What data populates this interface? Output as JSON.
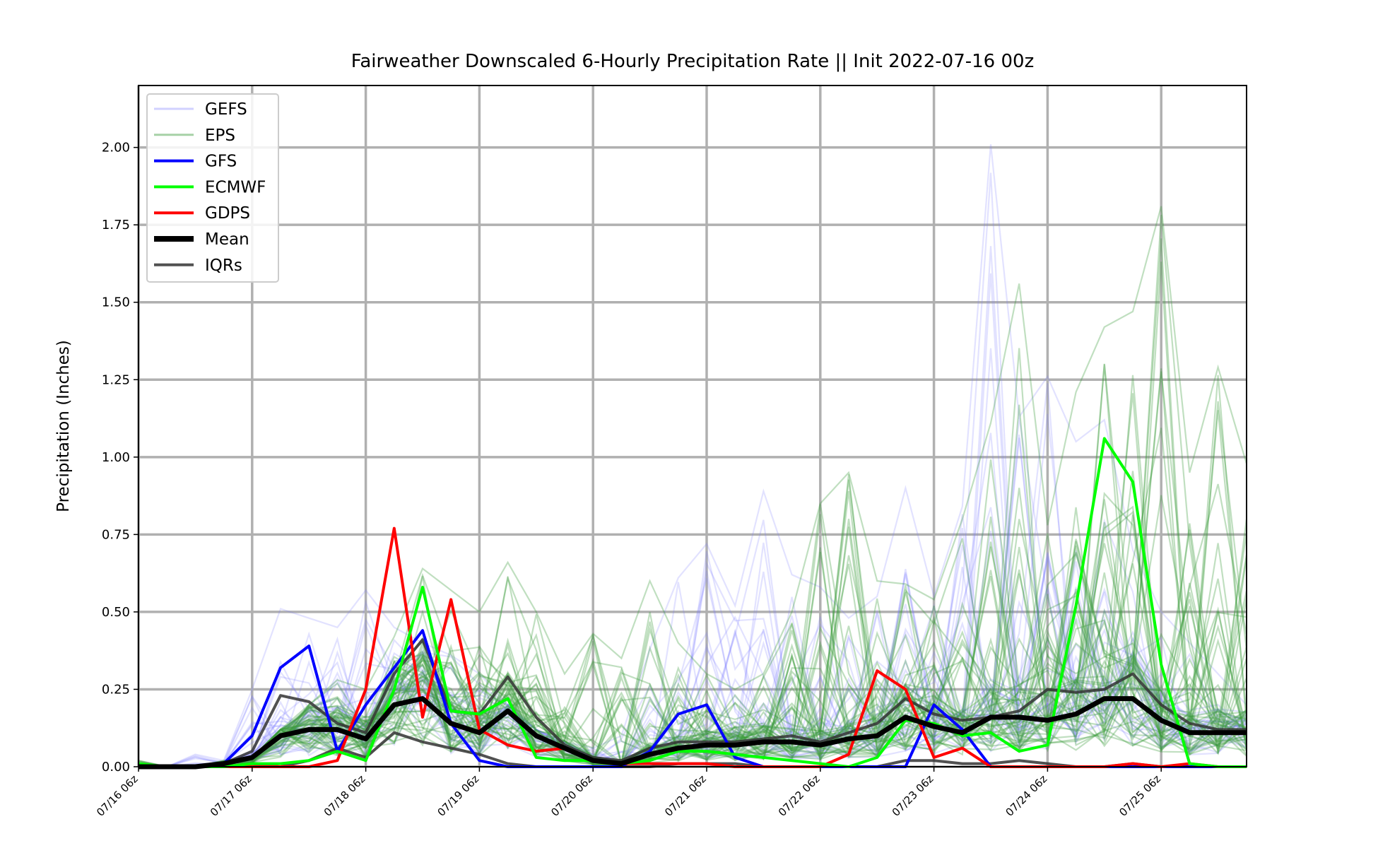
{
  "chart_data": {
    "type": "line",
    "title": "Fairweather Downscaled 6-Hourly Precipitation Rate || Init 2022-07-16 00z",
    "xlabel": "",
    "ylabel": "Precipitation (Inches)",
    "ylim": [
      0,
      2.2
    ],
    "yticks": [
      "0.00",
      "0.25",
      "0.50",
      "0.75",
      "1.00",
      "1.25",
      "1.50",
      "1.75",
      "2.00"
    ],
    "xticks": [
      "07/16 06z",
      "07/17 06z",
      "07/18 06z",
      "07/19 06z",
      "07/20 06z",
      "07/21 06z",
      "07/22 06z",
      "07/23 06z",
      "07/24 06z",
      "07/25 06z"
    ],
    "x_start": "07/16 06z",
    "x_step_hours": 6,
    "grid": true,
    "legend_position": "top-left",
    "legend": [
      {
        "label": "GEFS",
        "color": "#7b7bff",
        "style": "thin-faint"
      },
      {
        "label": "EPS",
        "color": "#3a9a3a",
        "style": "thin-faint"
      },
      {
        "label": "GFS",
        "color": "#0000ff",
        "style": "solid"
      },
      {
        "label": "ECMWF",
        "color": "#00ff00",
        "style": "solid"
      },
      {
        "label": "GDPS",
        "color": "#ff0000",
        "style": "solid"
      },
      {
        "label": "Mean",
        "color": "#000000",
        "style": "bold"
      },
      {
        "label": "IQRs",
        "color": "#333333",
        "style": "solid"
      }
    ],
    "series": [
      {
        "name": "GFS",
        "color": "#0000ff",
        "values": [
          0.0,
          0.0,
          0.0,
          0.01,
          0.1,
          0.32,
          0.39,
          0.05,
          0.2,
          0.32,
          0.44,
          0.14,
          0.02,
          0.0,
          0.0,
          0.0,
          0.0,
          0.0,
          0.05,
          0.17,
          0.2,
          0.03,
          0.0,
          0.0,
          0.0,
          0.0,
          0.0,
          0.0,
          0.2,
          0.12,
          0.0,
          0.0,
          0.0,
          0.0,
          0.0,
          0.0,
          0.0,
          0.0,
          0.0,
          0.0
        ]
      },
      {
        "name": "ECMWF",
        "color": "#00ff00",
        "values": [
          0.01,
          0.0,
          0.0,
          0.0,
          0.01,
          0.01,
          0.02,
          0.05,
          0.02,
          0.25,
          0.58,
          0.18,
          0.17,
          0.22,
          0.03,
          0.02,
          0.02,
          0.01,
          0.02,
          0.05,
          0.05,
          0.04,
          0.03,
          0.02,
          0.01,
          0.0,
          0.03,
          0.15,
          0.14,
          0.1,
          0.11,
          0.05,
          0.07,
          0.52,
          1.06,
          0.92,
          0.33,
          0.01,
          0.0,
          0.0
        ]
      },
      {
        "name": "GDPS",
        "color": "#ff0000",
        "values": [
          0.0,
          0.0,
          0.0,
          0.0,
          0.0,
          0.0,
          0.0,
          0.02,
          0.25,
          0.77,
          0.16,
          0.54,
          0.12,
          0.07,
          0.05,
          0.06,
          0.02,
          0.01,
          0.01,
          0.01,
          0.01,
          0.0,
          0.0,
          0.0,
          0.0,
          0.04,
          0.31,
          0.25,
          0.03,
          0.06,
          0.0,
          0.0,
          0.0,
          0.0,
          0.0,
          0.01,
          0.0,
          0.01,
          0.0,
          0.0
        ]
      },
      {
        "name": "Mean",
        "color": "#000000",
        "values": [
          0.0,
          0.0,
          0.0,
          0.01,
          0.03,
          0.1,
          0.12,
          0.12,
          0.09,
          0.2,
          0.22,
          0.14,
          0.11,
          0.18,
          0.1,
          0.06,
          0.02,
          0.01,
          0.04,
          0.06,
          0.07,
          0.07,
          0.08,
          0.08,
          0.07,
          0.09,
          0.1,
          0.16,
          0.13,
          0.11,
          0.16,
          0.16,
          0.15,
          0.17,
          0.22,
          0.22,
          0.15,
          0.11,
          0.11,
          0.11
        ]
      },
      {
        "name": "IQRs",
        "color": "#333333",
        "values": [
          0.0,
          0.0,
          0.0,
          0.01,
          0.05,
          0.23,
          0.21,
          0.14,
          0.11,
          0.3,
          0.41,
          0.18,
          0.17,
          0.29,
          0.16,
          0.07,
          0.03,
          0.02,
          0.06,
          0.08,
          0.08,
          0.08,
          0.09,
          0.1,
          0.08,
          0.11,
          0.14,
          0.22,
          0.17,
          0.15,
          0.16,
          0.18,
          0.25,
          0.24,
          0.25,
          0.3,
          0.2,
          0.14,
          0.12,
          0.12
        ]
      },
      {
        "name": "IQRs",
        "color": "#333333",
        "values": [
          0.0,
          0.0,
          0.0,
          0.0,
          0.01,
          0.0,
          0.02,
          0.06,
          0.03,
          0.11,
          0.08,
          0.06,
          0.04,
          0.01,
          0.0,
          0.0,
          0.0,
          0.0,
          0.0,
          0.01,
          0.01,
          0.01,
          0.0,
          0.0,
          0.0,
          0.0,
          0.0,
          0.02,
          0.02,
          0.01,
          0.01,
          0.02,
          0.01,
          0.0,
          0.0,
          0.01,
          0.0,
          0.0,
          0.0,
          0.0
        ]
      }
    ],
    "ensembles": [
      {
        "name": "GEFS",
        "color": "#7b7bff",
        "members": 31,
        "max_values": [
          0.0,
          0.0,
          0.04,
          0.02,
          0.25,
          0.51,
          0.48,
          0.45,
          0.57,
          0.45,
          0.4,
          0.36,
          0.3,
          0.2,
          0.12,
          0.08,
          0.06,
          0.1,
          0.38,
          0.61,
          0.72,
          0.52,
          0.89,
          0.62,
          0.58,
          0.48,
          0.55,
          0.9,
          0.55,
          0.84,
          2.01,
          1.13,
          1.26,
          1.05,
          1.12,
          0.7,
          0.5,
          0.4,
          0.3,
          0.2
        ]
      },
      {
        "name": "EPS",
        "color": "#3a9a3a",
        "members": 51,
        "max_values": [
          0.02,
          0.0,
          0.0,
          0.02,
          0.03,
          0.12,
          0.2,
          0.28,
          0.25,
          0.42,
          0.64,
          0.57,
          0.5,
          0.66,
          0.5,
          0.3,
          0.43,
          0.35,
          0.6,
          0.4,
          0.3,
          0.25,
          0.3,
          0.5,
          0.85,
          0.95,
          0.6,
          0.59,
          0.54,
          0.8,
          1.11,
          1.56,
          0.78,
          1.21,
          1.42,
          1.47,
          1.81,
          0.95,
          1.29,
          0.98
        ]
      }
    ]
  }
}
